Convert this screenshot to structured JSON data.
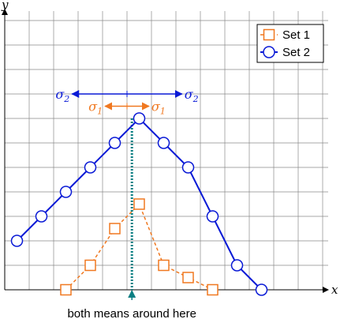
{
  "chart_data": {
    "type": "line",
    "xlabel": "x",
    "ylabel": "y",
    "grid": true,
    "legend": "top-right",
    "series": [
      {
        "name": "Set 1",
        "color": "#f07820",
        "marker": "square",
        "line_style": "dashed",
        "x": [
          2.5,
          3.5,
          4.5,
          5.5,
          6.5,
          7.5,
          8.5
        ],
        "y": [
          0,
          1,
          2.5,
          3.5,
          1,
          0.5,
          0
        ]
      },
      {
        "name": "Set 2",
        "color": "#0a1ad6",
        "marker": "circle",
        "line_style": "solid",
        "x": [
          0.5,
          1.5,
          2.5,
          3.5,
          4.5,
          5.5,
          6.5,
          7.5,
          8.5,
          9.5,
          10.5
        ],
        "y": [
          2,
          3,
          4,
          5,
          6,
          7,
          6,
          5,
          3,
          1,
          0
        ]
      }
    ],
    "xlim": [
      0,
      13.5
    ],
    "ylim": [
      0,
      11.8
    ],
    "annotations": {
      "mean_x": 5.2,
      "sigma2": {
        "label": "σ",
        "sub": "2",
        "center_x": 5.0,
        "half_width": 2.25,
        "y": 8.0,
        "color": "#0a1ad6"
      },
      "sigma1": {
        "label": "σ",
        "sub": "1",
        "center_x": 5.0,
        "half_width": 0.9,
        "y": 7.5,
        "color": "#f07820"
      },
      "mean_text": "both means around here"
    }
  }
}
